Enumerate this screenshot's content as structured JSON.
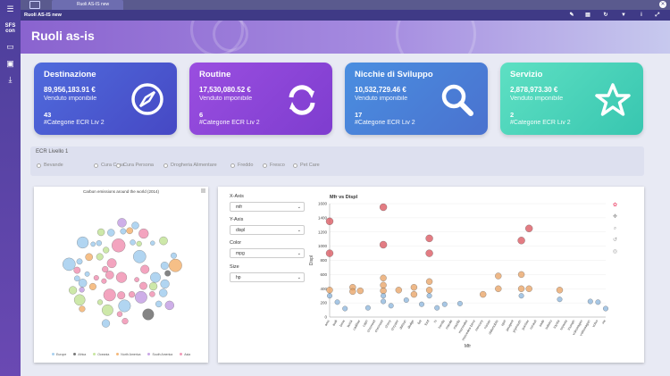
{
  "tab": {
    "label": "Ruoli AS-IS new"
  },
  "window": {
    "title": "Ruoli AS-IS new"
  },
  "sidebar": {
    "logo_text": "SFS con"
  },
  "header": {
    "title": "Ruoli as-is"
  },
  "cards": [
    {
      "title": "Destinazione",
      "value": "89,956,183.91 €",
      "sub": "Venduto imponibile",
      "count": "43",
      "cat": "#Categorie ECR Liv 2",
      "icon": "compass-icon",
      "color": "#4b5cd4"
    },
    {
      "title": "Routine",
      "value": "17,530,080.52 €",
      "sub": "Venduto imponibile",
      "count": "6",
      "cat": "#Categorie ECR Liv 2",
      "icon": "refresh-icon",
      "color": "#8a44d6"
    },
    {
      "title": "Nicchie di Sviluppo",
      "value": "10,532,729.46 €",
      "sub": "Venduto imponibile",
      "count": "17",
      "cat": "#Categorie ECR Liv 2",
      "icon": "search-icon",
      "color": "#4a86d9"
    },
    {
      "title": "Servizio",
      "value": "2,878,973.30 €",
      "sub": "Venduto imponibile",
      "count": "2",
      "cat": "#Categorie ECR Liv 2",
      "icon": "star-icon",
      "color": "#3fcfb3"
    }
  ],
  "filter": {
    "title": "ECR Livello 1",
    "options": [
      "Bevande",
      "Cura Casa",
      "Cura Persona",
      "Drogheria Alimentare",
      "Freddo",
      "Fresco",
      "Pet Care"
    ]
  },
  "bubble_chart": {
    "title": "Carbon emissions around the world (2014)",
    "legend": [
      "Europe",
      "Africa",
      "Oceania",
      "North America",
      "South America",
      "Asia"
    ],
    "legend_colors": [
      "#a8d0f0",
      "#777777",
      "#c8e6a0",
      "#f5b87a",
      "#c9a6e6",
      "#f29ab8"
    ]
  },
  "controls": {
    "x_label": "X-Axis",
    "x_value": "mfr",
    "y_label": "Y-Axis",
    "y_value": "displ",
    "color_label": "Color",
    "color_value": "mpg",
    "size_label": "Size",
    "size_value": "hp"
  },
  "chart_data": {
    "type": "scatter",
    "title": "Mfr vs Displ",
    "xlabel": "Mfr",
    "ylabel": "Displ",
    "ylim": [
      0,
      1600
    ],
    "yticks": [
      0,
      200,
      400,
      600,
      800,
      1000,
      1200,
      1400,
      1600
    ],
    "categories": [
      "amc",
      "audi",
      "bmw",
      "buick",
      "cadillac",
      "capri",
      "chevroelt",
      "chevrolet",
      "chevy",
      "chrysler",
      "datsun",
      "dodge",
      "fiat",
      "ford",
      "hi",
      "honda",
      "maxda",
      "mazda",
      "mercedes",
      "mercedes-benz",
      "mercury",
      "nissan",
      "oldsmobile",
      "opel",
      "peugeot",
      "plymouth",
      "pontiac",
      "renault",
      "saab",
      "subaru",
      "toyota",
      "toyouta",
      "triumph",
      "vokswagen",
      "volkswagen",
      "volvo",
      "vw"
    ],
    "points": [
      {
        "x": "amc",
        "y": 1350
      },
      {
        "x": "amc",
        "y": 900
      },
      {
        "x": "amc",
        "y": 380
      },
      {
        "x": "amc",
        "y": 300
      },
      {
        "x": "audi",
        "y": 210
      },
      {
        "x": "bmw",
        "y": 120
      },
      {
        "x": "buick",
        "y": 420
      },
      {
        "x": "buick",
        "y": 360
      },
      {
        "x": "cadillac",
        "y": 370
      },
      {
        "x": "capri",
        "y": 130
      },
      {
        "x": "chevrolet",
        "y": 1550
      },
      {
        "x": "chevrolet",
        "y": 1020
      },
      {
        "x": "chevrolet",
        "y": 550
      },
      {
        "x": "chevrolet",
        "y": 450
      },
      {
        "x": "chevrolet",
        "y": 370
      },
      {
        "x": "chevrolet",
        "y": 300
      },
      {
        "x": "chevrolet",
        "y": 220
      },
      {
        "x": "chevy",
        "y": 160
      },
      {
        "x": "chrysler",
        "y": 380
      },
      {
        "x": "datsun",
        "y": 240
      },
      {
        "x": "dodge",
        "y": 420
      },
      {
        "x": "dodge",
        "y": 320
      },
      {
        "x": "fiat",
        "y": 180
      },
      {
        "x": "ford",
        "y": 1110
      },
      {
        "x": "ford",
        "y": 900
      },
      {
        "x": "ford",
        "y": 500
      },
      {
        "x": "ford",
        "y": 380
      },
      {
        "x": "ford",
        "y": 300
      },
      {
        "x": "hi",
        "y": 130
      },
      {
        "x": "honda",
        "y": 180
      },
      {
        "x": "mazda",
        "y": 190
      },
      {
        "x": "mercury",
        "y": 320
      },
      {
        "x": "oldsmobile",
        "y": 580
      },
      {
        "x": "oldsmobile",
        "y": 400
      },
      {
        "x": "plymouth",
        "y": 1080
      },
      {
        "x": "plymouth",
        "y": 600
      },
      {
        "x": "plymouth",
        "y": 400
      },
      {
        "x": "plymouth",
        "y": 300
      },
      {
        "x": "pontiac",
        "y": 1250
      },
      {
        "x": "pontiac",
        "y": 400
      },
      {
        "x": "toyota",
        "y": 380
      },
      {
        "x": "toyota",
        "y": 250
      },
      {
        "x": "volkswagen",
        "y": 220
      },
      {
        "x": "volvo",
        "y": 210
      },
      {
        "x": "vw",
        "y": 120
      }
    ]
  }
}
